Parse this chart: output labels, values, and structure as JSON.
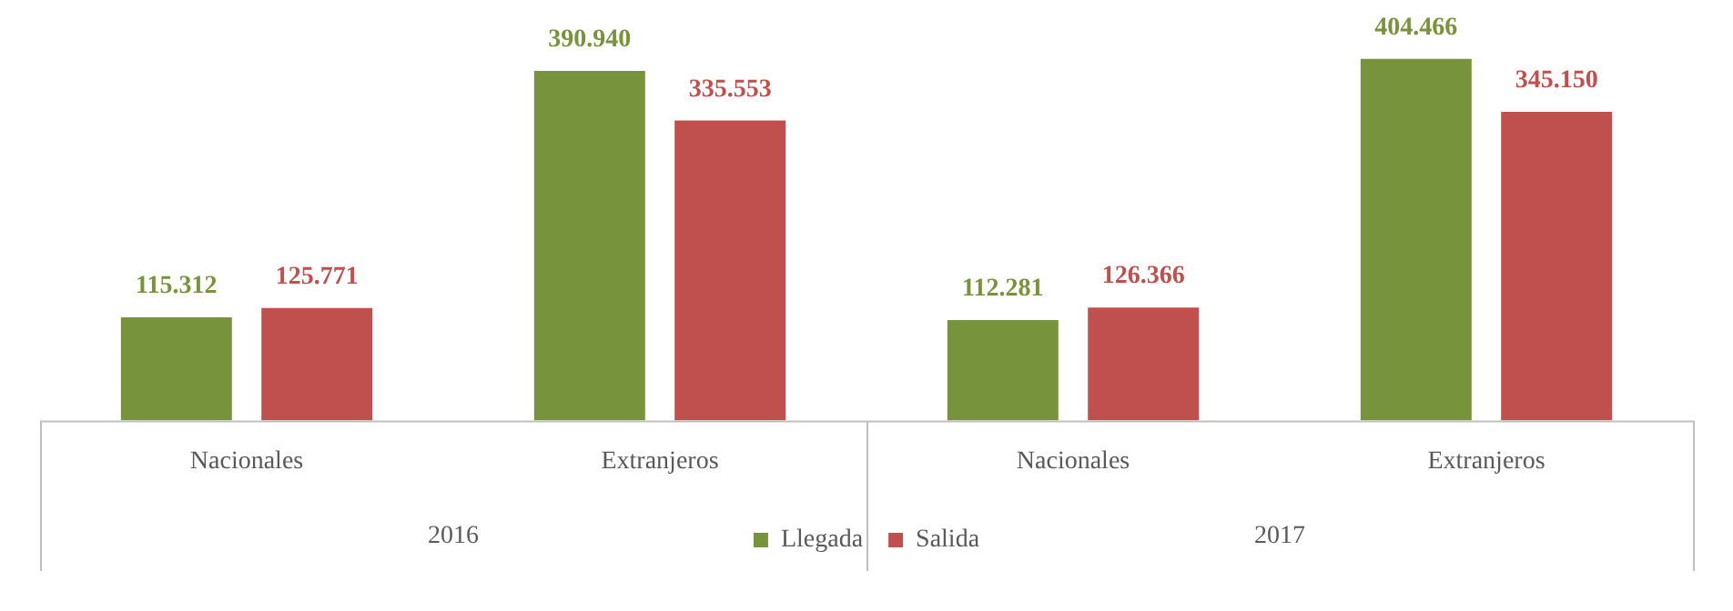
{
  "chart_data": {
    "type": "bar",
    "categories": [
      "Nacionales",
      "Extranjeros",
      "Nacionales",
      "Extranjeros"
    ],
    "annotations": [
      "2016",
      "2017"
    ],
    "series": [
      {
        "name": "Llegada",
        "color": "#77933c",
        "values": [
          115312,
          390940,
          112281,
          404466
        ],
        "value_labels": [
          "115.312",
          "390.940",
          "112.281",
          "404.466"
        ]
      },
      {
        "name": "Salida",
        "color": "#c0504d",
        "values": [
          125771,
          335553,
          126366,
          345150
        ],
        "value_labels": [
          "125.771",
          "335.553",
          "126.366",
          "345.150"
        ]
      }
    ],
    "legend": "bottom",
    "grid": false
  }
}
